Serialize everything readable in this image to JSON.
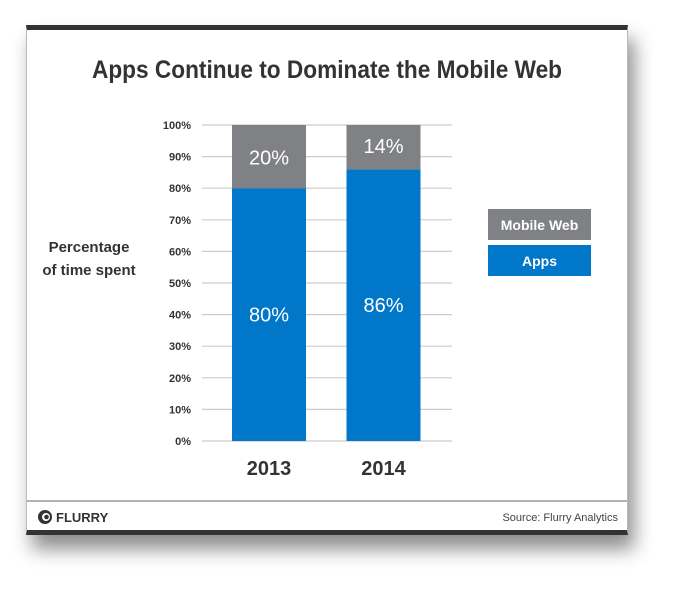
{
  "chart_data": {
    "type": "bar",
    "stacked": true,
    "title": "Apps Continue to Dominate the Mobile Web",
    "ylabel": [
      "Percentage",
      "of time spent"
    ],
    "xlabel": "",
    "categories": [
      "2013",
      "2014"
    ],
    "series": [
      {
        "name": "Apps",
        "values": [
          80,
          86
        ],
        "labels": [
          "80%",
          "86%"
        ],
        "color": "#0077c8"
      },
      {
        "name": "Mobile Web",
        "values": [
          20,
          14
        ],
        "labels": [
          "20%",
          "14%"
        ],
        "color": "#808184"
      }
    ],
    "ylim": [
      0,
      100
    ],
    "yticks": [
      "0%",
      "10%",
      "20%",
      "30%",
      "40%",
      "50%",
      "60%",
      "70%",
      "80%",
      "90%",
      "100%"
    ],
    "grid": true,
    "legend_position": "right"
  },
  "footer": {
    "logo": "FLURRY",
    "source": "Source: Flurry Analytics"
  }
}
